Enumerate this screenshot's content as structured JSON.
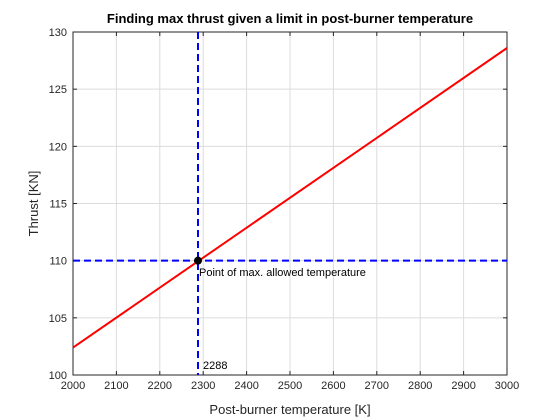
{
  "chart_data": {
    "type": "line",
    "title": "Finding max thrust given a limit in post-burner temperature",
    "xlabel": "Post-burner temperature [K]",
    "ylabel": "Thrust [KN]",
    "xlim": [
      2000,
      3000
    ],
    "ylim": [
      100,
      130
    ],
    "xticks": [
      2000,
      2100,
      2200,
      2300,
      2400,
      2500,
      2600,
      2700,
      2800,
      2900,
      3000
    ],
    "yticks": [
      100,
      105,
      110,
      115,
      120,
      125,
      130
    ],
    "grid": true,
    "colors": {
      "line": "#ff0000",
      "reference": "#0000ff",
      "point": "#000000",
      "grid": "#dcdcdc",
      "axis": "#262626"
    },
    "series": [
      {
        "x": [
          2000,
          3000
        ],
        "y": [
          102.4,
          128.6
        ]
      }
    ],
    "vline_x": 2288,
    "hline_y": 110,
    "point": {
      "x": 2288,
      "y": 110
    },
    "annotations": {
      "point_label": "Point of max. allowed temperature",
      "vline_label": "2288"
    }
  }
}
